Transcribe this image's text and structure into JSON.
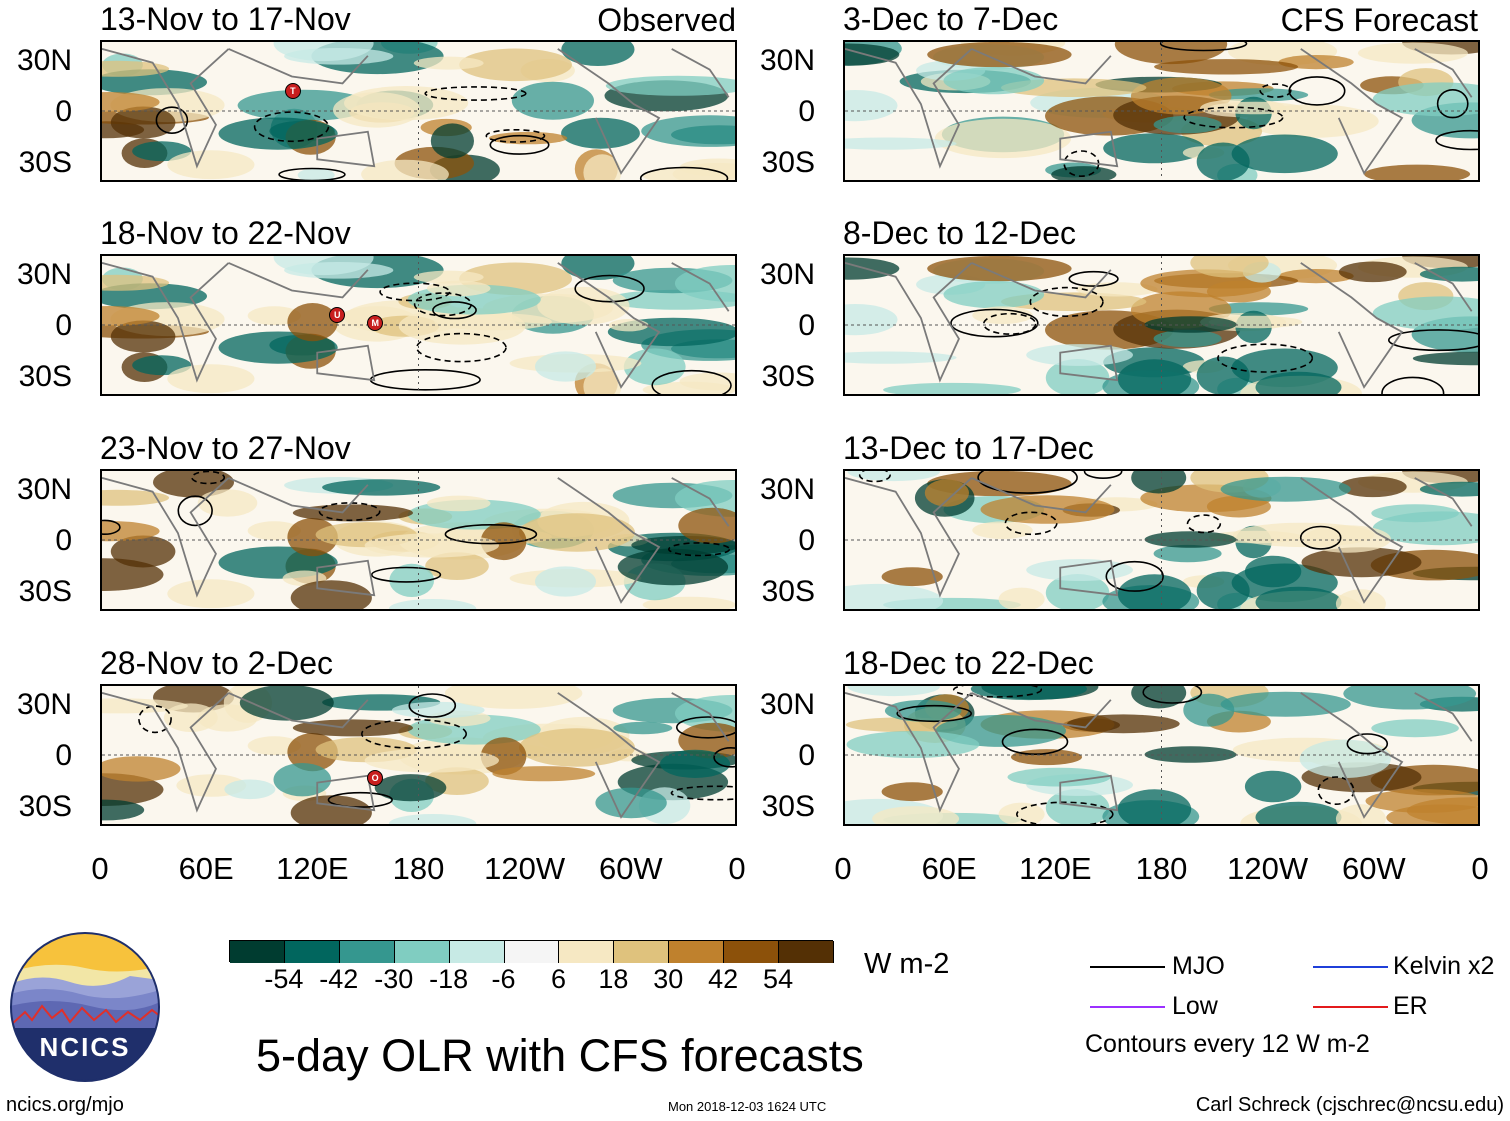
{
  "main_title": "5-day OLR with CFS forecasts",
  "observed_label": "Observed",
  "forecast_label": "CFS Forecast",
  "observed_panels": [
    {
      "title": "13-Nov to 17-Nov",
      "markers": [
        "T"
      ]
    },
    {
      "title": "18-Nov to 22-Nov",
      "markers": [
        "U",
        "M"
      ]
    },
    {
      "title": "23-Nov to 27-Nov",
      "markers": []
    },
    {
      "title": "28-Nov to 2-Dec",
      "markers": [
        "O"
      ]
    }
  ],
  "forecast_panels": [
    {
      "title": "3-Dec to 7-Dec"
    },
    {
      "title": "8-Dec to 12-Dec"
    },
    {
      "title": "13-Dec to 17-Dec"
    },
    {
      "title": "18-Dec to 22-Dec"
    }
  ],
  "lat_labels": [
    "30N",
    "0",
    "30S"
  ],
  "lon_labels": [
    "0",
    "60E",
    "120E",
    "180",
    "120W",
    "60W",
    "0"
  ],
  "colorbar": {
    "units": "W m-2",
    "ticks": [
      "-54",
      "-42",
      "-30",
      "-18",
      "-6",
      "6",
      "18",
      "30",
      "42",
      "54"
    ],
    "colors": [
      "#003c30",
      "#01665e",
      "#35978f",
      "#80cdc1",
      "#c7eae5",
      "#f5f5f5",
      "#f6e8c3",
      "#dfc27d",
      "#bf812d",
      "#8c510a",
      "#543005"
    ]
  },
  "legend": {
    "items": [
      {
        "label": "MJO",
        "color": "#000000"
      },
      {
        "label": "Kelvin x2",
        "color": "#1f3fd9"
      },
      {
        "label": "Low",
        "color": "#9b30ff"
      },
      {
        "label": "ER",
        "color": "#e31a1c"
      }
    ],
    "note": "Contours every 12 W m-2"
  },
  "logo_text": "NCICS",
  "footer": {
    "left": "ncics.org/mjo",
    "center": "Mon 2018-12-03 1624 UTC",
    "right": "Carl Schreck (cjschrec@ncsu.edu)"
  }
}
